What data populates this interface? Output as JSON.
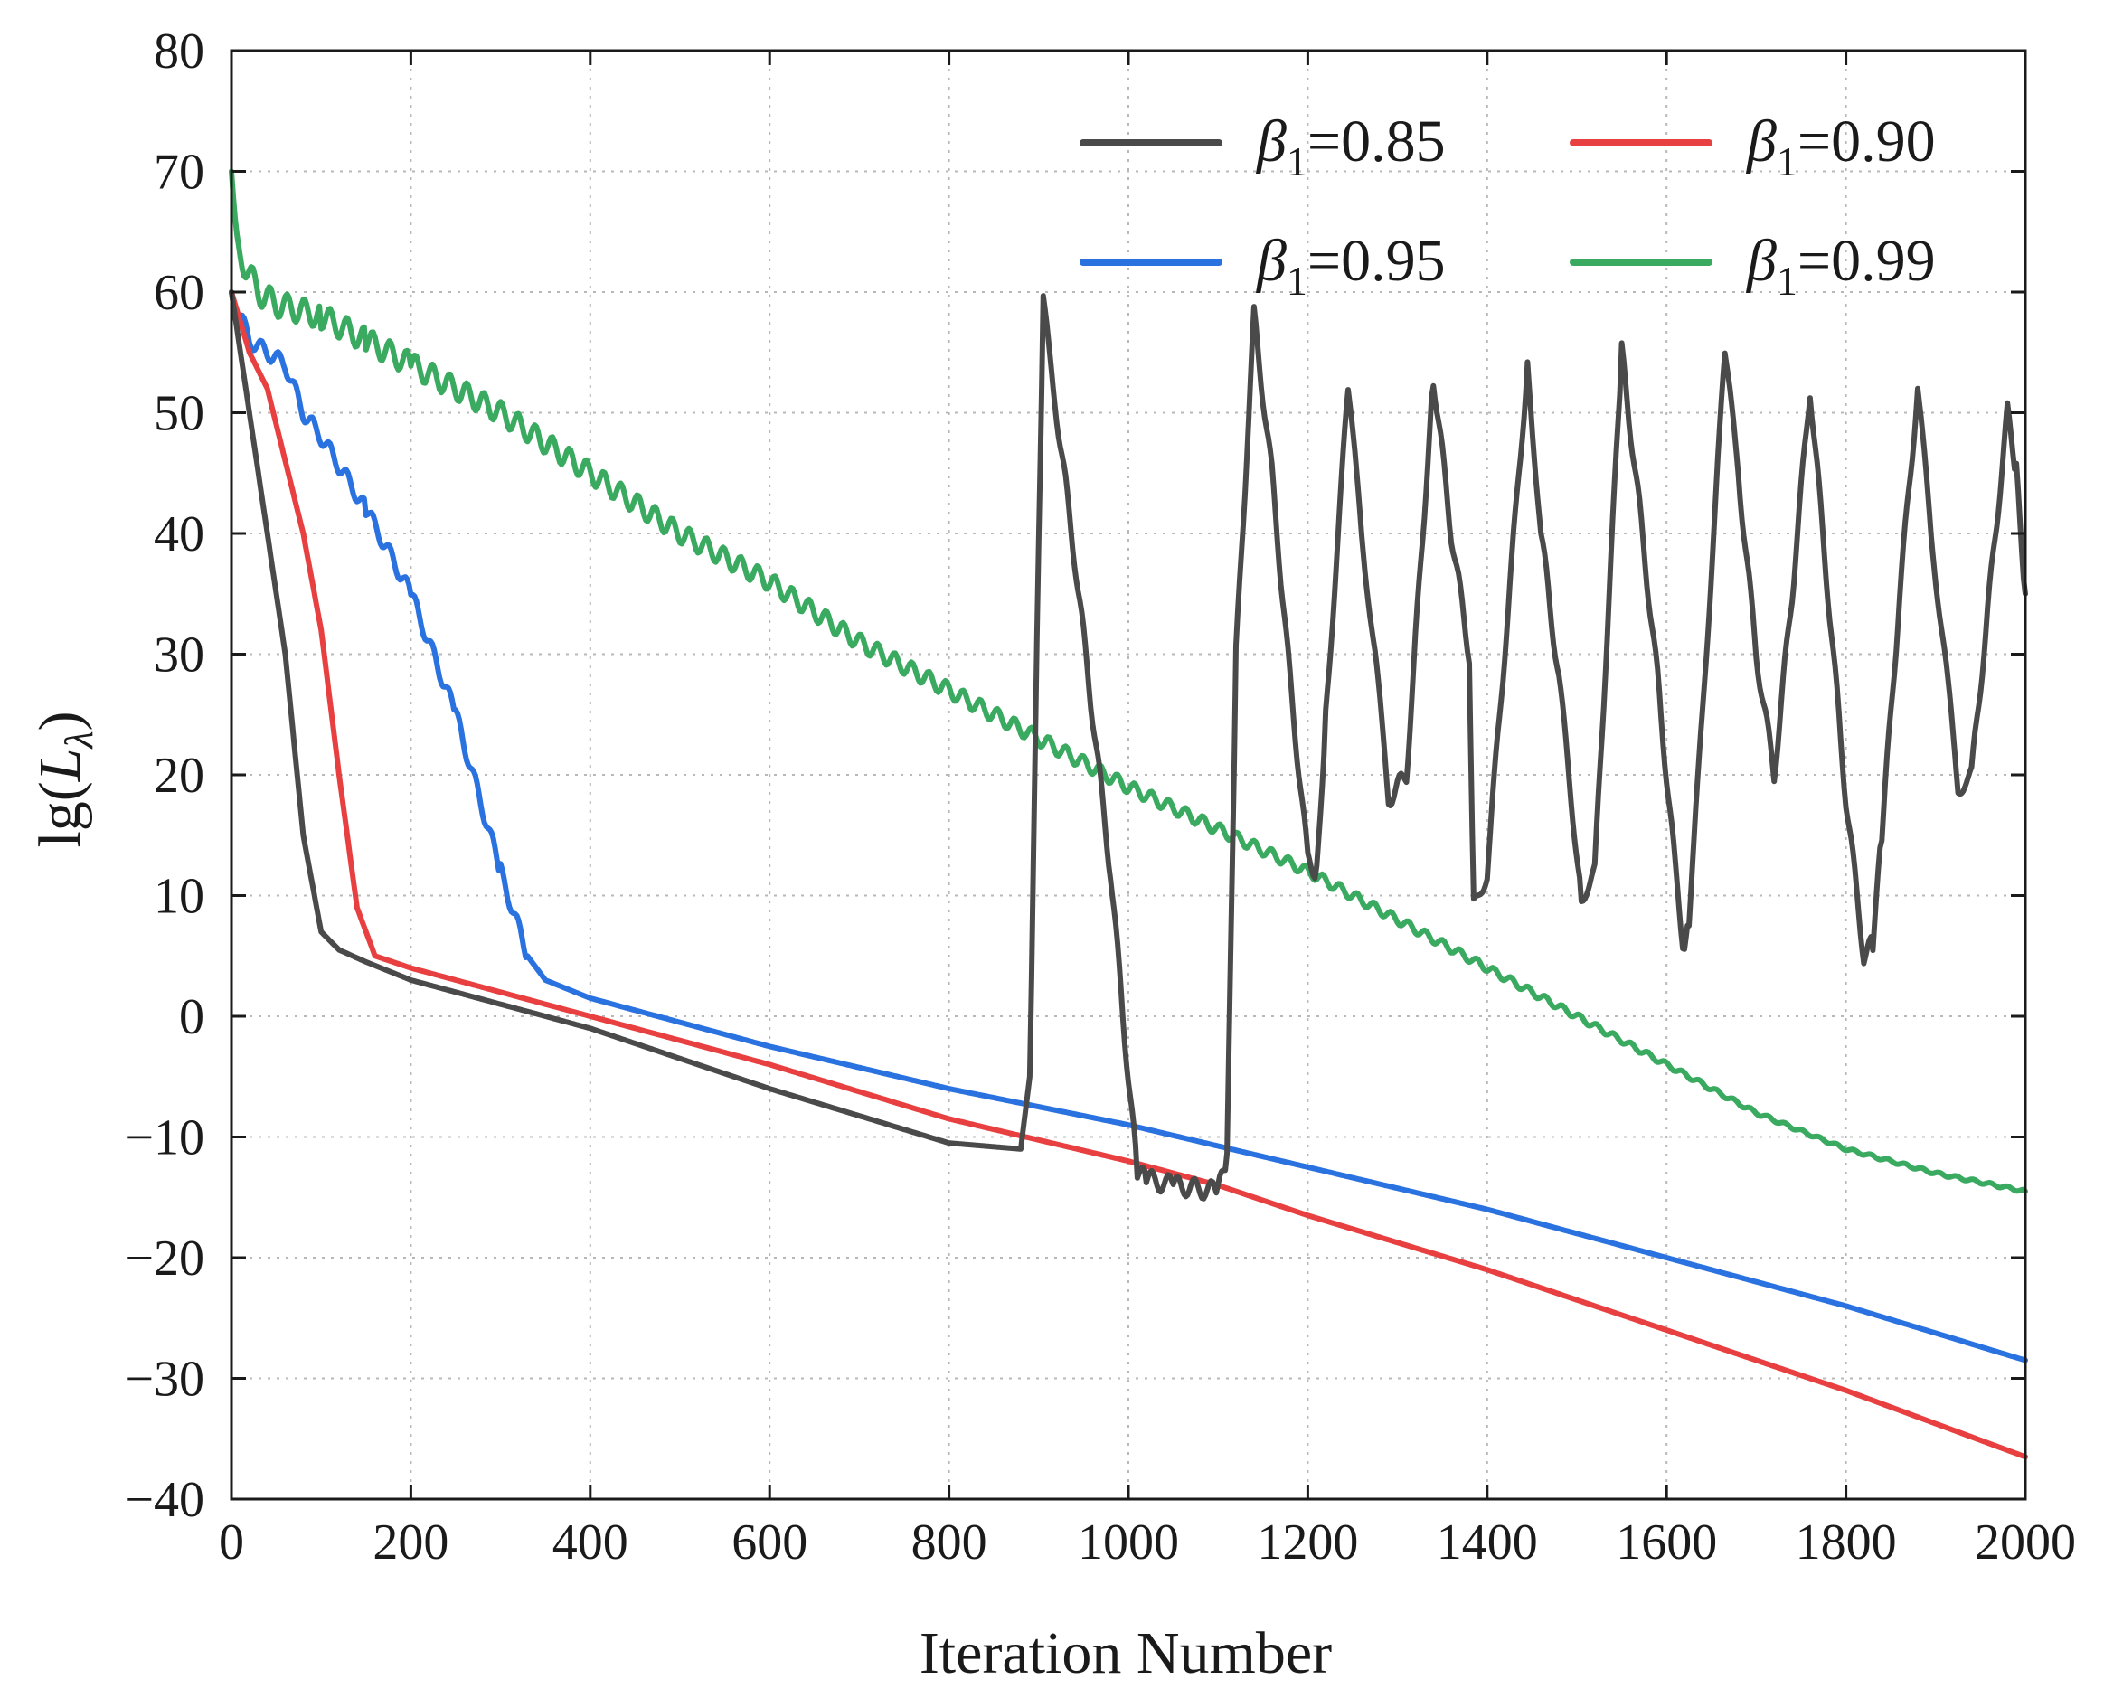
{
  "chart_data": {
    "type": "line",
    "xlabel": "Iteration Number",
    "ylabel": "lg(L_λ)",
    "ylabel_parts": {
      "prefix": "lg(",
      "var": "L",
      "sub": "λ",
      "suffix": ")"
    },
    "xlim": [
      0,
      2000
    ],
    "ylim": [
      -40,
      80
    ],
    "xticks": [
      0,
      200,
      400,
      600,
      800,
      1000,
      1200,
      1400,
      1600,
      1800,
      2000
    ],
    "yticks": [
      -40,
      -30,
      -20,
      -10,
      0,
      10,
      20,
      30,
      40,
      50,
      60,
      70,
      80
    ],
    "ytick_labels": [
      "−40",
      "−30",
      "−20",
      "−10",
      "0",
      "10",
      "20",
      "30",
      "40",
      "50",
      "60",
      "70",
      "80"
    ],
    "grid": true,
    "legend": {
      "placement": "top-right",
      "columns": 2
    },
    "series": [
      {
        "name": "β1=0.85",
        "name_parts": {
          "greek": "β",
          "sub": "1",
          "value": "=0.85"
        },
        "color": "#4a4a4a",
        "x": [
          0,
          20,
          40,
          60,
          80,
          100,
          120,
          150,
          200,
          300,
          400,
          600,
          800,
          880,
          890,
          900,
          905,
          920,
          940,
          960,
          980,
          1000,
          1010,
          1020,
          1050,
          1100,
          1110,
          1120,
          1140,
          1160,
          1180,
          1200,
          1210,
          1220,
          1245,
          1260,
          1275,
          1290,
          1310,
          1340,
          1360,
          1380,
          1385,
          1400,
          1445,
          1460,
          1480,
          1505,
          1520,
          1550,
          1570,
          1590,
          1610,
          1620,
          1625,
          1640,
          1665,
          1680,
          1700,
          1720,
          1740,
          1760,
          1780,
          1800,
          1820,
          1830,
          1840,
          1860,
          1880,
          1895,
          1910,
          1925,
          1940,
          1960,
          1980,
          1990,
          2000
        ],
        "y": [
          60,
          50,
          40,
          30,
          15,
          7,
          5.5,
          4.5,
          3,
          1,
          -1,
          -6,
          -10.5,
          -11,
          -5,
          40,
          59,
          50,
          38,
          25,
          12,
          -5,
          -13,
          -13.5,
          -14,
          -14.5,
          -12,
          30,
          58,
          45,
          28,
          13,
          12,
          25,
          52,
          40,
          30,
          18,
          20,
          53,
          40,
          30,
          9,
          12,
          54,
          40,
          28,
          10,
          12,
          55,
          42,
          28,
          12,
          5,
          8,
          25,
          55,
          45,
          30,
          20,
          35,
          52,
          35,
          18,
          5,
          6,
          15,
          35,
          52,
          40,
          30,
          19,
          20,
          35,
          50,
          45,
          35
        ]
      },
      {
        "name": "β1=0.90",
        "name_parts": {
          "greek": "β",
          "sub": "1",
          "value": "=0.90"
        },
        "color": "#e84040",
        "x": [
          0,
          20,
          40,
          60,
          80,
          100,
          120,
          140,
          160,
          180,
          200,
          300,
          400,
          600,
          800,
          1000,
          1100,
          1200,
          1400,
          1600,
          1800,
          2000
        ],
        "y": [
          60,
          55,
          52,
          46,
          40,
          32,
          20,
          9,
          5,
          4.5,
          4,
          2,
          0,
          -4,
          -8.5,
          -12,
          -14,
          -16.5,
          -21,
          -26,
          -31,
          -36.5
        ]
      },
      {
        "name": "β1=0.95",
        "name_parts": {
          "greek": "β",
          "sub": "1",
          "value": "=0.95"
        },
        "color": "#2a72e0",
        "x": [
          0,
          20,
          40,
          60,
          80,
          100,
          150,
          200,
          250,
          300,
          330,
          350,
          400,
          600,
          800,
          1000,
          1200,
          1400,
          1600,
          1800,
          2000
        ],
        "y": [
          60,
          56,
          55,
          54,
          50,
          48,
          42,
          35,
          25,
          12,
          5,
          3,
          1.5,
          -2.5,
          -6,
          -9,
          -12.5,
          -16,
          -20,
          -24,
          -28.5
        ]
      },
      {
        "name": "β1=0.99",
        "name_parts": {
          "greek": "β",
          "sub": "1",
          "value": "=0.99"
        },
        "color": "#3aaa60",
        "x": [
          0,
          10,
          30,
          50,
          100,
          150,
          200,
          300,
          400,
          500,
          600,
          700,
          800,
          900,
          1000,
          1100,
          1200,
          1300,
          1400,
          1500,
          1600,
          1700,
          1800,
          1900,
          2000
        ],
        "y": [
          70,
          63,
          60,
          59,
          58,
          56,
          54,
          50,
          45,
          40,
          36,
          31,
          27,
          23,
          19,
          15.5,
          12,
          8,
          4,
          0,
          -4,
          -8,
          -11,
          -13,
          -14.5
        ]
      }
    ]
  }
}
